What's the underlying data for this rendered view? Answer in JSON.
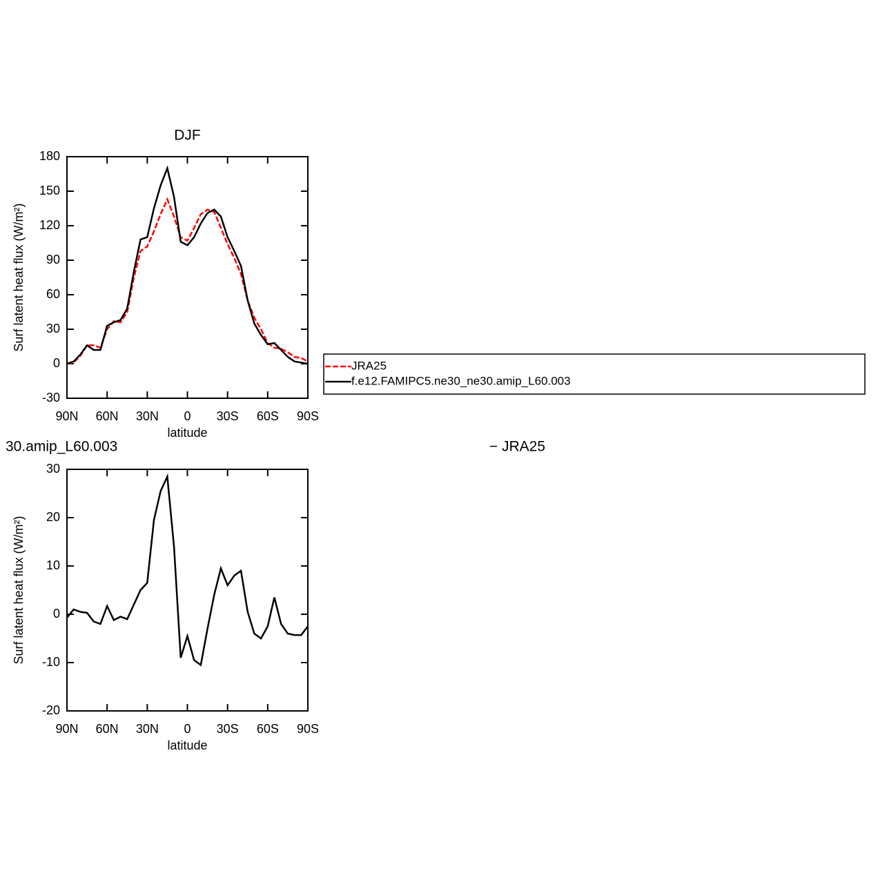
{
  "chart_data": [
    {
      "type": "line",
      "title": "DJF",
      "xlabel": "latitude",
      "ylabel": "Surf latent heat flux (W/m²)",
      "x": [
        90,
        85,
        80,
        75,
        70,
        65,
        60,
        55,
        50,
        45,
        40,
        35,
        30,
        25,
        20,
        15,
        10,
        5,
        0,
        -5,
        -10,
        -15,
        -20,
        -25,
        -30,
        -35,
        -40,
        -45,
        -50,
        -55,
        -60,
        -65,
        -70,
        -75,
        -80,
        -85,
        -90
      ],
      "xlim": [
        90,
        -90
      ],
      "xticks": [
        {
          "value": 90,
          "label": "90N"
        },
        {
          "value": 60,
          "label": "60N"
        },
        {
          "value": 30,
          "label": "30N"
        },
        0,
        {
          "value": -30,
          "label": "30S"
        },
        {
          "value": -60,
          "label": "60S"
        },
        {
          "value": -90,
          "label": "90S"
        }
      ],
      "ylim": [
        -30,
        180
      ],
      "yticks": [
        -30,
        0,
        30,
        60,
        90,
        120,
        150,
        180
      ],
      "legend": "right",
      "series": [
        {
          "name": "JRA25",
          "color": "#ff0000",
          "dash": true,
          "values": [
            0,
            1,
            7,
            16,
            16,
            14,
            30,
            37,
            36,
            45,
            75,
            98,
            102,
            115,
            130,
            143,
            128,
            110,
            107,
            118,
            130,
            134,
            132,
            118,
            104,
            92,
            78,
            55,
            40,
            30,
            18,
            14,
            13,
            10,
            6,
            5,
            2
          ]
        },
        {
          "name": "f.e12.FAMIPC5.ne30_ne30.amip_L60.003",
          "color": "#000000",
          "dash": false,
          "values": [
            0,
            2,
            8,
            16,
            12,
            12,
            33,
            36,
            38,
            48,
            80,
            108,
            110,
            135,
            155,
            170,
            145,
            106,
            103,
            110,
            122,
            131,
            134,
            128,
            110,
            98,
            85,
            55,
            35,
            25,
            17,
            18,
            12,
            6,
            2,
            1,
            0
          ]
        }
      ]
    },
    {
      "type": "line",
      "title": "30.amip_L60.003",
      "subtitle": "− JRA25",
      "xlabel": "latitude",
      "ylabel": "Surf latent heat flux (W/m²)",
      "x": [
        90,
        85,
        80,
        75,
        70,
        65,
        60,
        55,
        50,
        45,
        40,
        35,
        30,
        25,
        20,
        15,
        10,
        5,
        0,
        -5,
        -10,
        -15,
        -20,
        -25,
        -30,
        -35,
        -40,
        -45,
        -50,
        -55,
        -60,
        -65,
        -70,
        -75,
        -80,
        -85,
        -90
      ],
      "xlim": [
        90,
        -90
      ],
      "xticks": [
        {
          "value": 90,
          "label": "90N"
        },
        {
          "value": 60,
          "label": "60N"
        },
        {
          "value": 30,
          "label": "30N"
        },
        0,
        {
          "value": -30,
          "label": "30S"
        },
        {
          "value": -60,
          "label": "60S"
        },
        {
          "value": -90,
          "label": "90S"
        }
      ],
      "ylim": [
        -20,
        30
      ],
      "yticks": [
        -20,
        -10,
        0,
        10,
        20,
        30
      ],
      "series": [
        {
          "color": "#000000",
          "dash": false,
          "values": [
            -0.7,
            1,
            0.5,
            0.3,
            -1.5,
            -2,
            1.7,
            -1.2,
            -0.5,
            -1,
            2,
            5,
            6.5,
            19.5,
            25.5,
            28.5,
            14,
            -9,
            -4.5,
            -9.5,
            -10.5,
            -3,
            4,
            9.5,
            6,
            8,
            9,
            0.5,
            -4,
            -5,
            -2.5,
            3.5,
            -2,
            -4,
            -4.3,
            -4.3,
            -2.5
          ]
        }
      ]
    }
  ]
}
